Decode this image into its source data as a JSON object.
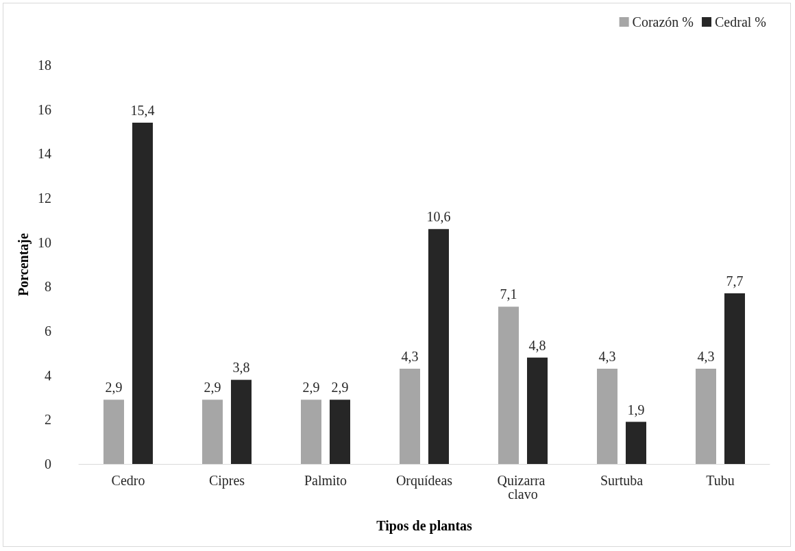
{
  "chart_data": {
    "type": "bar",
    "xlabel": "Tipos de plantas",
    "ylabel": "Porcentaje",
    "categories": [
      "Cedro",
      "Cipres",
      "Palmito",
      "Orquídeas",
      "Quizarra clavo",
      "Surtuba",
      "Tubu"
    ],
    "series": [
      {
        "name": "Corazón %",
        "color": "#a6a6a6",
        "values": [
          2.9,
          2.9,
          2.9,
          4.3,
          7.1,
          4.3,
          4.3
        ],
        "value_labels": [
          "2,9",
          "2,9",
          "2,9",
          "4,3",
          "7,1",
          "4,3",
          "4,3"
        ]
      },
      {
        "name": "Cedral %",
        "color": "#262626",
        "values": [
          15.4,
          3.8,
          2.9,
          10.6,
          4.8,
          1.9,
          7.7
        ],
        "value_labels": [
          "15,4",
          "3,8",
          "2,9",
          "10,6",
          "4,8",
          "1,9",
          "7,7"
        ]
      }
    ],
    "ylim": [
      0,
      18
    ],
    "yticks": [
      0,
      2,
      4,
      6,
      8,
      10,
      12,
      14,
      16,
      18
    ],
    "grid": false,
    "legend": "top right"
  }
}
